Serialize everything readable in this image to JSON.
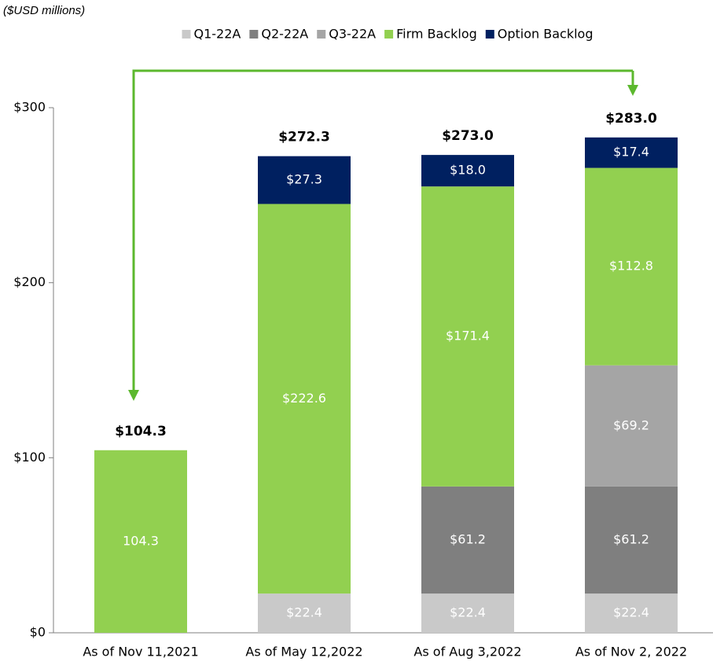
{
  "chart_data": {
    "type": "bar",
    "stacked": true,
    "subtitle": "($USD millions)",
    "categories": [
      "As of Nov 11,2021",
      "As of May 12,2022",
      "As of Aug 3,2022",
      "As of Nov 2, 2022"
    ],
    "series": [
      {
        "name": "Q1-22A",
        "color": "#c9c9c9",
        "values": [
          null,
          22.4,
          22.4,
          22.4
        ],
        "value_labels": [
          null,
          "$22.4",
          "$22.4",
          "$22.4"
        ]
      },
      {
        "name": "Q2-22A",
        "color": "#7f7f7f",
        "values": [
          null,
          null,
          61.2,
          61.2
        ],
        "value_labels": [
          null,
          null,
          "$61.2",
          "$61.2"
        ]
      },
      {
        "name": "Q3-22A",
        "color": "#a5a5a5",
        "values": [
          null,
          null,
          null,
          69.2
        ],
        "value_labels": [
          null,
          null,
          null,
          "$69.2"
        ]
      },
      {
        "name": "Firm Backlog",
        "color": "#92d050",
        "values": [
          104.3,
          222.6,
          171.4,
          112.8
        ],
        "value_labels": [
          "104.3",
          "$222.6",
          "$171.4",
          "$112.8"
        ]
      },
      {
        "name": "Option Backlog",
        "color": "#002060",
        "values": [
          null,
          27.3,
          18.0,
          17.4
        ],
        "value_labels": [
          null,
          "$27.3",
          "$18.0",
          "$17.4"
        ]
      }
    ],
    "totals": [
      104.3,
      272.3,
      273.0,
      283.0
    ],
    "total_labels": [
      "$104.3",
      "$272.3",
      "$273.0",
      "$283.0"
    ],
    "ylim": [
      0,
      300
    ],
    "yticks": [
      {
        "value": 0,
        "label": "$0"
      },
      {
        "value": 100,
        "label": "$100"
      },
      {
        "value": 200,
        "label": "$200"
      },
      {
        "value": 300,
        "label": "$300"
      }
    ],
    "legend": "top"
  }
}
